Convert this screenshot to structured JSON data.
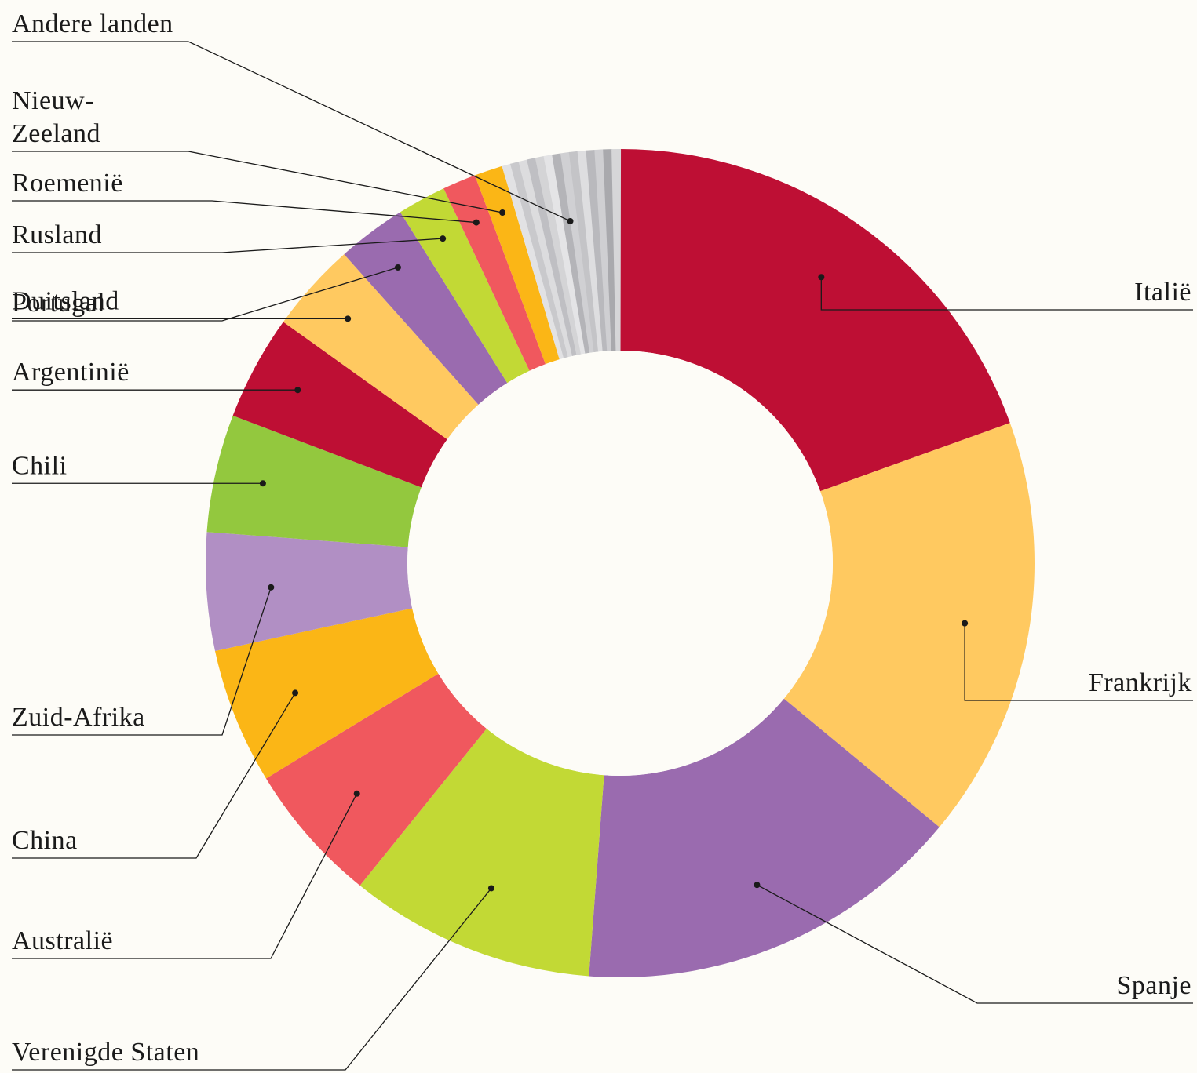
{
  "chart_data": {
    "type": "donut",
    "title": "",
    "slices": [
      {
        "name": "Italië",
        "value": 19.5,
        "color": "#be0f34"
      },
      {
        "name": "Frankrijk",
        "value": 16.5,
        "color": "#ffc960"
      },
      {
        "name": "Spanje",
        "value": 15.2,
        "color": "#9a6baf"
      },
      {
        "name": "Verenigde Staten",
        "value": 9.6,
        "color": "#c2d935"
      },
      {
        "name": "Australië",
        "value": 5.5,
        "color": "#f0585e"
      },
      {
        "name": "China",
        "value": 5.3,
        "color": "#fbb616"
      },
      {
        "name": "Zuid-Afrika",
        "value": 4.6,
        "color": "#b18fc4"
      },
      {
        "name": "Chili",
        "value": 4.6,
        "color": "#93c83e"
      },
      {
        "name": "Argentinië",
        "value": 4.1,
        "color": "#be0f34"
      },
      {
        "name": "Duitsland",
        "value": 3.5,
        "color": "#ffc960"
      },
      {
        "name": "Portugal",
        "value": 2.7,
        "color": "#9a6baf"
      },
      {
        "name": "Rusland",
        "value": 1.9,
        "color": "#c2d935"
      },
      {
        "name": "Roemenië",
        "value": 1.3,
        "color": "#f0585e"
      },
      {
        "name": "Nieuw-Zeeland",
        "label_lines": [
          "Nieuw-",
          "Zeeland"
        ],
        "value": 1.1,
        "color": "#fbb616"
      },
      {
        "name": "Andere landen",
        "value": 4.6,
        "color": "#d6d6d8",
        "stripes": [
          "#e2e2e4",
          "#c9c9cc",
          "#dcdcde",
          "#bfbfc3",
          "#d4d4d6",
          "#e4e4e6",
          "#b4b4b8",
          "#d0d0d3",
          "#c4c4c7",
          "#dedee0",
          "#b9b9bd",
          "#cfcfd2",
          "#a9a9ad",
          "#d6d6d8"
        ]
      }
    ]
  }
}
